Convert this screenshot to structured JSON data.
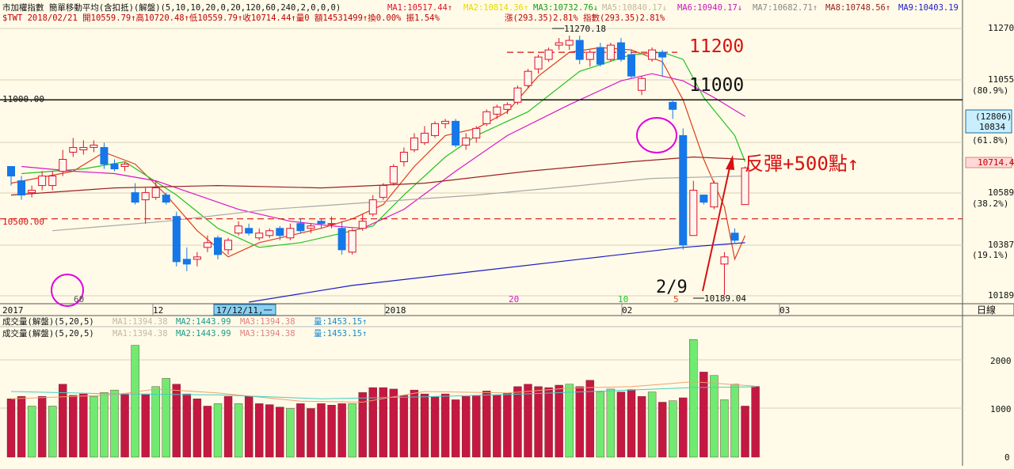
{
  "header": {
    "line1": {
      "title": "市加權指數  簡單移動平均(含扣抵)(解盤)(5,10,10,20,0,20,120,60,240,2,0,0,0)",
      "ma1": "MA1:10517.44↑",
      "ma2": "MA2:10814.36↑",
      "ma3": "MA3:10732.76↓",
      "ma5": "MA5:10840.17↓",
      "ma6": "MA6:10940.17↓",
      "ma7": "MA7:10682.71↑",
      "ma8": "MA8:10748.56↑",
      "ma9": "MA9:10403.19"
    },
    "line2": {
      "quote": "$TWT  2018/02/21 開10559.79↑高10720.48↑低10559.79↑收10714.44↑量0 額14531499↑換0.00% 振1.54%",
      "change": "漲(293.35)2.81% 指數(293.35)2.81%"
    }
  },
  "volume_header": {
    "title": "成交量(解盤)(5,20,5)",
    "ma1": "MA1:1394.38",
    "ma2": "MA2:1443.99",
    "ma3": "MA3:1394.38",
    "vol": "量:1453.15↑"
  },
  "annotations": {
    "level_11200": "11200",
    "level_11000": "11000",
    "line_11000_label": "11000.00",
    "line_10500_label": "10500.00",
    "rebound": "反彈+500點↑",
    "date_29": "2/9",
    "high_label": "11270.18",
    "low_label": "10189.04",
    "cross_label": "17/12/11,一",
    "marker_60": "60",
    "marker_20": "20",
    "marker_10": "10",
    "marker_5": "5"
  },
  "axis": {
    "x_labels": [
      "2017",
      "12",
      "2018",
      "02",
      "03"
    ],
    "x_unit": "日線",
    "y_right": [
      "11270",
      "11055",
      "(80.9%)",
      "(61.8%)",
      "10589",
      "(38.2%)",
      "10387",
      "(19.1%)",
      "10189"
    ],
    "cursor_box_1": "(12806)",
    "cursor_box_2": "10834",
    "current_price": "10714.4",
    "vol_ticks": [
      "2000",
      "1000",
      "0"
    ]
  },
  "colors": {
    "up": "#e0112b",
    "down": "#1677e8",
    "background": "#fffbe8",
    "ma5": "#e03c1c",
    "ma10": "#23c11f",
    "ma20": "#d816c8",
    "ma60": "#9b2020",
    "ma120": "#a8a8a8",
    "ma240": "#1c1cc8",
    "vol_up": "#c41842",
    "vol_down": "#70ea70"
  },
  "chart_data": {
    "type": "candlestick",
    "ylim": [
      10150,
      11320
    ],
    "candles": [
      [
        10720,
        10720,
        10640,
        10680
      ],
      [
        10660,
        10680,
        10580,
        10600
      ],
      [
        10610,
        10640,
        10590,
        10620
      ],
      [
        10640,
        10700,
        10620,
        10680
      ],
      [
        10640,
        10700,
        10620,
        10680
      ],
      [
        10700,
        10790,
        10680,
        10750
      ],
      [
        10780,
        10840,
        10760,
        10800
      ],
      [
        10790,
        10830,
        10770,
        10800
      ],
      [
        10800,
        10830,
        10780,
        10810
      ],
      [
        10800,
        10820,
        10710,
        10730
      ],
      [
        10730,
        10750,
        10700,
        10710
      ],
      [
        10720,
        10740,
        10700,
        10730
      ],
      [
        10610,
        10650,
        10560,
        10570
      ],
      [
        10580,
        10630,
        10480,
        10610
      ],
      [
        10590,
        10660,
        10580,
        10630
      ],
      [
        10600,
        10610,
        10560,
        10570
      ],
      [
        10510,
        10530,
        10300,
        10320
      ],
      [
        10330,
        10380,
        10280,
        10310
      ],
      [
        10330,
        10360,
        10300,
        10340
      ],
      [
        10380,
        10430,
        10360,
        10400
      ],
      [
        10420,
        10430,
        10330,
        10350
      ],
      [
        10370,
        10420,
        10350,
        10410
      ],
      [
        10440,
        10490,
        10430,
        10470
      ],
      [
        10460,
        10480,
        10430,
        10440
      ],
      [
        10420,
        10460,
        10410,
        10440
      ],
      [
        10430,
        10460,
        10420,
        10450
      ],
      [
        10460,
        10470,
        10410,
        10430
      ],
      [
        10420,
        10480,
        10410,
        10460
      ],
      [
        10480,
        10500,
        10440,
        10450
      ],
      [
        10460,
        10480,
        10440,
        10470
      ],
      [
        10490,
        10500,
        10460,
        10480
      ],
      [
        10480,
        10510,
        10460,
        10480
      ],
      [
        10460,
        10490,
        10350,
        10370
      ],
      [
        10360,
        10460,
        10350,
        10450
      ],
      [
        10460,
        10520,
        10450,
        10490
      ],
      [
        10520,
        10600,
        10510,
        10580
      ],
      [
        10590,
        10650,
        10580,
        10640
      ],
      [
        10650,
        10730,
        10640,
        10720
      ],
      [
        10740,
        10800,
        10720,
        10780
      ],
      [
        10790,
        10860,
        10780,
        10840
      ],
      [
        10820,
        10890,
        10810,
        10860
      ],
      [
        10850,
        10910,
        10840,
        10900
      ],
      [
        10900,
        10920,
        10880,
        10910
      ],
      [
        10910,
        10920,
        10800,
        10810
      ],
      [
        10810,
        10860,
        10790,
        10840
      ],
      [
        10840,
        10890,
        10820,
        10880
      ],
      [
        10900,
        10960,
        10890,
        10950
      ],
      [
        10940,
        10980,
        10920,
        10970
      ],
      [
        10960,
        10990,
        10940,
        10980
      ],
      [
        10990,
        11060,
        10980,
        11050
      ],
      [
        11060,
        11130,
        11050,
        11120
      ],
      [
        11130,
        11190,
        11110,
        11180
      ],
      [
        11170,
        11220,
        11160,
        11210
      ],
      [
        11230,
        11260,
        11210,
        11240
      ],
      [
        11230,
        11270,
        11210,
        11250
      ],
      [
        11250,
        11270,
        11150,
        11170
      ],
      [
        11170,
        11210,
        11140,
        11200
      ],
      [
        11220,
        11240,
        11140,
        11150
      ],
      [
        11170,
        11240,
        11160,
        11230
      ],
      [
        11240,
        11260,
        11160,
        11170
      ],
      [
        11190,
        11210,
        11090,
        11100
      ],
      [
        11040,
        11100,
        11020,
        11090
      ],
      [
        11170,
        11220,
        11160,
        11210
      ],
      [
        11200,
        11210,
        11100,
        11180
      ],
      [
        10990,
        11000,
        10920,
        10960
      ],
      [
        10850,
        10880,
        10370,
        10390
      ],
      [
        10430,
        10660,
        10430,
        10620
      ],
      [
        10600,
        10600,
        10560,
        10570
      ],
      [
        10550,
        10660,
        10540,
        10650
      ],
      [
        10310,
        10360,
        10180,
        10340
      ],
      [
        10440,
        10460,
        10400,
        10410
      ],
      [
        10560,
        10720,
        10560,
        10714
      ]
    ],
    "volume": [
      [
        1200,
        1
      ],
      [
        1250,
        1
      ],
      [
        1050,
        0
      ],
      [
        1250,
        1
      ],
      [
        1050,
        0
      ],
      [
        1500,
        1
      ],
      [
        1270,
        1
      ],
      [
        1300,
        1
      ],
      [
        1250,
        0
      ],
      [
        1330,
        0
      ],
      [
        1380,
        0
      ],
      [
        1300,
        1
      ],
      [
        2300,
        0
      ],
      [
        1300,
        1
      ],
      [
        1450,
        0
      ],
      [
        1620,
        0
      ],
      [
        1500,
        1
      ],
      [
        1300,
        1
      ],
      [
        1200,
        1
      ],
      [
        1050,
        1
      ],
      [
        1100,
        0
      ],
      [
        1250,
        1
      ],
      [
        1100,
        0
      ],
      [
        1250,
        1
      ],
      [
        1100,
        1
      ],
      [
        1080,
        1
      ],
      [
        1030,
        1
      ],
      [
        1000,
        0
      ],
      [
        1100,
        1
      ],
      [
        1000,
        1
      ],
      [
        1100,
        1
      ],
      [
        1070,
        1
      ],
      [
        1100,
        1
      ],
      [
        1100,
        0
      ],
      [
        1330,
        1
      ],
      [
        1430,
        1
      ],
      [
        1430,
        1
      ],
      [
        1400,
        1
      ],
      [
        1270,
        1
      ],
      [
        1380,
        1
      ],
      [
        1300,
        1
      ],
      [
        1250,
        1
      ],
      [
        1300,
        1
      ],
      [
        1180,
        1
      ],
      [
        1250,
        1
      ],
      [
        1260,
        1
      ],
      [
        1360,
        1
      ],
      [
        1270,
        1
      ],
      [
        1320,
        1
      ],
      [
        1450,
        1
      ],
      [
        1500,
        1
      ],
      [
        1450,
        1
      ],
      [
        1430,
        1
      ],
      [
        1480,
        1
      ],
      [
        1500,
        0
      ],
      [
        1450,
        1
      ],
      [
        1580,
        1
      ],
      [
        1340,
        0
      ],
      [
        1400,
        0
      ],
      [
        1340,
        1
      ],
      [
        1390,
        1
      ],
      [
        1250,
        1
      ],
      [
        1340,
        0
      ],
      [
        1130,
        1
      ],
      [
        1160,
        0
      ],
      [
        1220,
        1
      ],
      [
        2420,
        0
      ],
      [
        1750,
        1
      ],
      [
        1680,
        0
      ],
      [
        1180,
        0
      ],
      [
        1500,
        0
      ],
      [
        1050,
        1
      ],
      [
        1453,
        1
      ]
    ],
    "ma_lines": {
      "ma5": [
        [
          10650,
          0
        ],
        [
          10700,
          6
        ],
        [
          10780,
          9
        ],
        [
          10730,
          12
        ],
        [
          10600,
          15
        ],
        [
          10450,
          18
        ],
        [
          10340,
          21
        ],
        [
          10400,
          24
        ],
        [
          10430,
          27
        ],
        [
          10460,
          30
        ],
        [
          10500,
          33
        ],
        [
          10560,
          36
        ],
        [
          10720,
          39
        ],
        [
          10850,
          42
        ],
        [
          10880,
          45
        ],
        [
          10950,
          48
        ],
        [
          11100,
          51
        ],
        [
          11200,
          54
        ],
        [
          11220,
          57
        ],
        [
          11210,
          60
        ],
        [
          11160,
          63
        ],
        [
          11000,
          65
        ],
        [
          10750,
          67
        ],
        [
          10550,
          69
        ],
        [
          10330,
          70
        ],
        [
          10430,
          71
        ]
      ],
      "ma10": [
        [
          10690,
          1
        ],
        [
          10710,
          7
        ],
        [
          10740,
          11
        ],
        [
          10600,
          16
        ],
        [
          10460,
          20
        ],
        [
          10380,
          24
        ],
        [
          10400,
          28
        ],
        [
          10440,
          32
        ],
        [
          10470,
          35
        ],
        [
          10600,
          38
        ],
        [
          10760,
          42
        ],
        [
          10850,
          45
        ],
        [
          10950,
          50
        ],
        [
          11120,
          55
        ],
        [
          11190,
          60
        ],
        [
          11200,
          63
        ],
        [
          11170,
          65
        ],
        [
          11010,
          67
        ],
        [
          10850,
          70
        ],
        [
          10740,
          71
        ]
      ],
      "ma20": [
        [
          10720,
          1
        ],
        [
          10700,
          6
        ],
        [
          10690,
          10
        ],
        [
          10660,
          14
        ],
        [
          10600,
          18
        ],
        [
          10540,
          22
        ],
        [
          10490,
          27
        ],
        [
          10470,
          31
        ],
        [
          10460,
          34
        ],
        [
          10540,
          38
        ],
        [
          10700,
          43
        ],
        [
          10850,
          48
        ],
        [
          10980,
          54
        ],
        [
          11080,
          59
        ],
        [
          11110,
          62
        ],
        [
          11080,
          65
        ],
        [
          11010,
          68
        ],
        [
          10930,
          71
        ]
      ],
      "ma60": [
        [
          10600,
          0
        ],
        [
          10630,
          10
        ],
        [
          10640,
          20
        ],
        [
          10630,
          30
        ],
        [
          10650,
          40
        ],
        [
          10700,
          50
        ],
        [
          10740,
          60
        ],
        [
          10760,
          66
        ],
        [
          10750,
          71
        ]
      ],
      "ma120": [
        [
          10450,
          4
        ],
        [
          10490,
          15
        ],
        [
          10540,
          25
        ],
        [
          10570,
          35
        ],
        [
          10600,
          45
        ],
        [
          10640,
          55
        ],
        [
          10670,
          62
        ],
        [
          10680,
          71
        ]
      ],
      "ma240": [
        [
          10150,
          23
        ],
        [
          10220,
          33
        ],
        [
          10280,
          45
        ],
        [
          10330,
          55
        ],
        [
          10380,
          65
        ],
        [
          10400,
          71
        ]
      ]
    },
    "hlines": [
      11000,
      10500,
      11200
    ]
  }
}
